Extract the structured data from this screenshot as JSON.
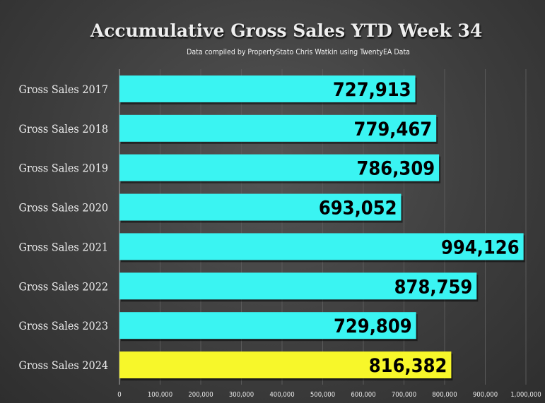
{
  "chart_data": {
    "type": "bar",
    "orientation": "horizontal",
    "title": "Accumulative Gross Sales YTD Week 34",
    "subtitle": "Data compiled by PropertyStato Chris Watkin using TwentyEA Data",
    "categories": [
      "Gross Sales 2017",
      "Gross Sales 2018",
      "Gross Sales 2019",
      "Gross Sales 2020",
      "Gross Sales 2021",
      "Gross Sales 2022",
      "Gross Sales 2023",
      "Gross Sales 2024"
    ],
    "values": [
      727913,
      779467,
      786309,
      693052,
      994126,
      878759,
      729809,
      816382
    ],
    "value_labels": [
      "727,913",
      "779,467",
      "786,309",
      "693,052",
      "994,126",
      "878,759",
      "729,809",
      "816,382"
    ],
    "colors": [
      "#3af4f2",
      "#3af4f2",
      "#3af4f2",
      "#3af4f2",
      "#3af4f2",
      "#3af4f2",
      "#3af4f2",
      "#f7f72a"
    ],
    "xlim": [
      0,
      1000000
    ],
    "xticks": [
      0,
      100000,
      200000,
      300000,
      400000,
      500000,
      600000,
      700000,
      800000,
      900000,
      1000000
    ],
    "xtick_labels": [
      "0",
      "100,000",
      "200,000",
      "300,000",
      "400,000",
      "500,000",
      "600,000",
      "700,000",
      "800,000",
      "900,000",
      "1,000,000"
    ],
    "grid": true,
    "xlabel": "",
    "ylabel": ""
  }
}
